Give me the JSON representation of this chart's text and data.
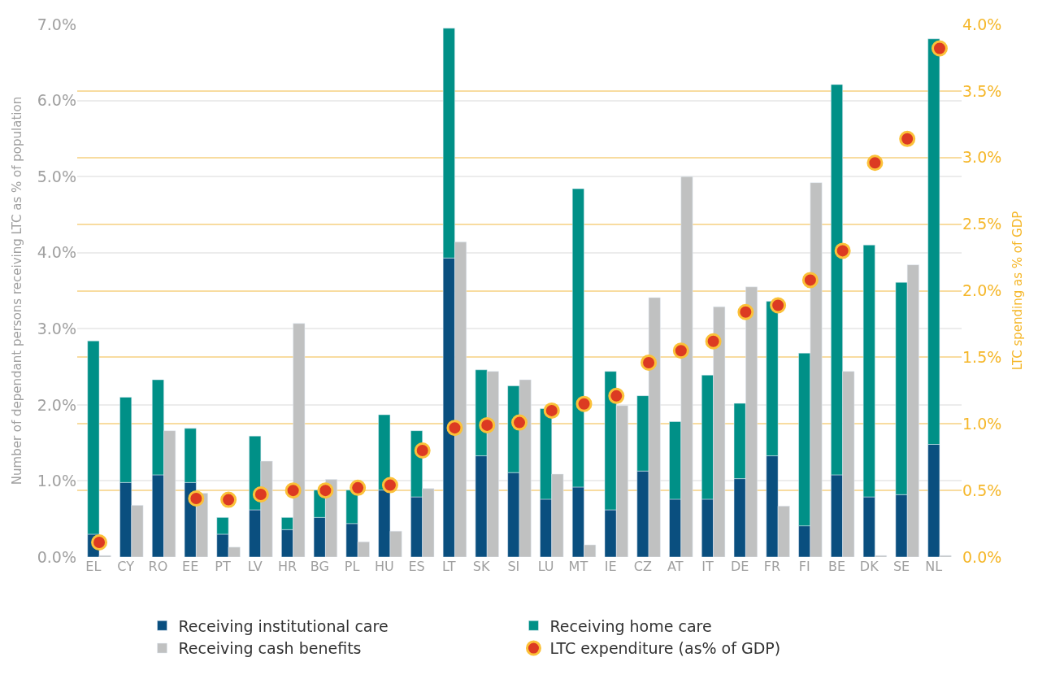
{
  "chart_data": {
    "type": "bar",
    "ylabel": "Number of dependant persons receiving LTC as % of population",
    "y2label": "LTC spending as % of GDP",
    "categories": [
      "EL",
      null,
      "CY",
      null,
      "RO",
      null,
      "EE",
      null,
      "PT",
      null,
      "LV",
      null,
      "HR",
      null,
      "BG",
      null,
      "PL",
      null,
      "HU",
      null,
      "ES",
      null,
      "LT",
      null,
      "SK",
      null,
      "SI",
      null,
      "LU",
      null,
      "MT",
      null,
      "IE",
      null,
      "CZ",
      null,
      "AT",
      null,
      "IT",
      null,
      "DE",
      null,
      "FR",
      null,
      "FI",
      null,
      "BE",
      null,
      "DK",
      null,
      "SE",
      null,
      "NL",
      null
    ],
    "stacked": true,
    "series": [
      {
        "name": "Receiving institutional care",
        "color": "#0a4f7f",
        "values": [
          0.3,
          null,
          0.98,
          null,
          1.08,
          null,
          0.98,
          null,
          0.3,
          null,
          0.62,
          null,
          0.36,
          null,
          0.52,
          null,
          0.44,
          null,
          0.88,
          null,
          0.79,
          null,
          3.93,
          null,
          1.33,
          null,
          1.11,
          null,
          0.76,
          null,
          0.92,
          null,
          0.62,
          null,
          1.13,
          null,
          0.76,
          null,
          0.76,
          null,
          1.03,
          null,
          1.33,
          null,
          0.41,
          null,
          1.08,
          null,
          0.79,
          null,
          0.82,
          null,
          1.48,
          null
        ]
      },
      {
        "name": "Receiving home care",
        "color": "#009087",
        "values": [
          2.54,
          null,
          1.12,
          null,
          1.25,
          null,
          0.71,
          null,
          0.22,
          null,
          0.97,
          null,
          0.16,
          null,
          0.36,
          null,
          0.44,
          null,
          0.99,
          null,
          0.87,
          null,
          3.02,
          null,
          1.13,
          null,
          1.14,
          null,
          1.19,
          null,
          3.92,
          null,
          1.82,
          null,
          0.99,
          null,
          1.02,
          null,
          1.63,
          null,
          0.99,
          null,
          2.03,
          null,
          2.27,
          null,
          5.13,
          null,
          3.31,
          null,
          2.79,
          null,
          5.33,
          null
        ]
      },
      {
        "name": "Receiving cash benefits",
        "color": "#c0c1c1",
        "values": [
          null,
          0.02,
          null,
          0.68,
          null,
          1.66,
          null,
          0.84,
          null,
          0.13,
          null,
          1.26,
          null,
          3.07,
          null,
          1.02,
          null,
          0.2,
          null,
          0.34,
          null,
          0.9,
          null,
          4.14,
          null,
          2.44,
          null,
          2.33,
          null,
          1.09,
          null,
          0.16,
          null,
          1.99,
          null,
          3.41,
          null,
          5.0,
          null,
          3.29,
          null,
          3.55,
          null,
          0.67,
          null,
          4.92,
          null,
          2.44,
          null,
          0.02,
          null,
          3.84,
          null,
          0.02
        ]
      },
      {
        "name": "LTC expenditure (as% of GDP)",
        "type": "scatter",
        "axis": "y2",
        "color": "#dc3a22",
        "marker": "circle",
        "values": [
          0.11,
          null,
          null,
          null,
          null,
          null,
          0.44,
          null,
          0.43,
          null,
          0.47,
          null,
          0.5,
          null,
          0.5,
          null,
          0.52,
          null,
          0.54,
          null,
          0.8,
          null,
          0.97,
          null,
          0.99,
          null,
          1.01,
          null,
          1.1,
          null,
          1.15,
          null,
          1.21,
          null,
          1.46,
          null,
          1.55,
          null,
          1.62,
          null,
          1.84,
          null,
          1.89,
          null,
          2.08,
          null,
          2.3,
          null,
          2.96,
          null,
          3.14,
          null,
          3.82,
          null
        ]
      }
    ],
    "ylim": [
      0,
      7.0
    ],
    "yticks": [
      {
        "value": 0,
        "label": "0.0%"
      },
      {
        "value": 1,
        "label": "1.0%"
      },
      {
        "value": 2,
        "label": "2.0%"
      },
      {
        "value": 3,
        "label": "3.0%"
      },
      {
        "value": 4,
        "label": "4.0%"
      },
      {
        "value": 5,
        "label": "5.0%"
      },
      {
        "value": 6,
        "label": "6.0%"
      },
      {
        "value": 7,
        "label": "7.0%"
      }
    ],
    "y2lim": [
      0,
      4.0
    ],
    "y2ticks": [
      {
        "value": 0,
        "label": "0.0%"
      },
      {
        "value": 0.5,
        "label": "0.5%"
      },
      {
        "value": 1,
        "label": "1.0%"
      },
      {
        "value": 1.5,
        "label": "1.5%"
      },
      {
        "value": 2,
        "label": "2.0%"
      },
      {
        "value": 2.5,
        "label": "2.5%"
      },
      {
        "value": 3,
        "label": "3.0%"
      },
      {
        "value": 3.5,
        "label": "3.5%"
      },
      {
        "value": 4,
        "label": "4.0%"
      }
    ],
    "grid": true,
    "legend": "bottom"
  }
}
